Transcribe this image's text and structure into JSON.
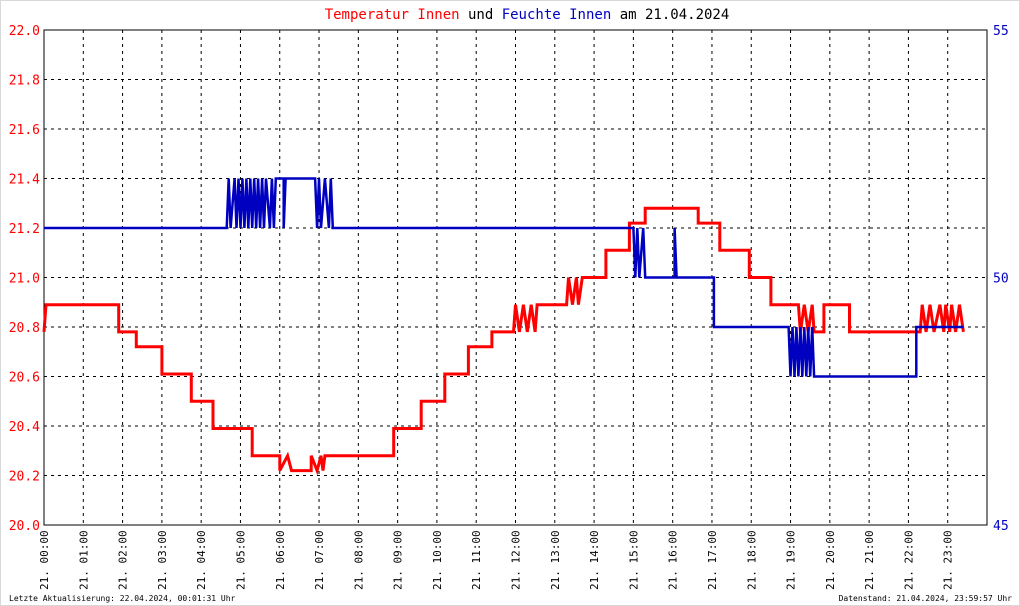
{
  "title": {
    "parts": [
      {
        "text": "Temperatur Innen",
        "color": "#ff0000"
      },
      {
        "text": " und ",
        "color": "#000000"
      },
      {
        "text": "Feuchte Innen",
        "color": "#0000c0"
      },
      {
        "text": " am 21.04.2024",
        "color": "#000000"
      }
    ]
  },
  "footer": {
    "left": "Letzte Aktualisierung: 22.04.2024, 00:01:31 Uhr",
    "right": "Datenstand: 21.04.2024, 23:59:57 Uhr"
  },
  "chart_data": {
    "type": "line",
    "title": "Temperatur Innen und Feuchte Innen am 21.04.2024",
    "grid": true,
    "x_range": [
      "21. 00:00",
      "21. 24:00"
    ],
    "x_unit": "hours",
    "x_ticks": [
      "21. 00:00",
      "21. 01:00",
      "21. 02:00",
      "21. 03:00",
      "21. 04:00",
      "21. 05:00",
      "21. 06:00",
      "21. 07:00",
      "21. 08:00",
      "21. 09:00",
      "21. 10:00",
      "21. 11:00",
      "21. 12:00",
      "21. 13:00",
      "21. 14:00",
      "21. 15:00",
      "21. 16:00",
      "21. 17:00",
      "21. 18:00",
      "21. 19:00",
      "21. 20:00",
      "21. 21:00",
      "21. 22:00",
      "21. 23:00"
    ],
    "y_left": {
      "ticks": [
        "20.0",
        "20.2",
        "20.4",
        "20.6",
        "20.8",
        "21.0",
        "21.2",
        "21.4",
        "21.6",
        "21.8",
        "22.0"
      ],
      "ylim": [
        20.0,
        22.0
      ],
      "color": "#ff0000"
    },
    "y_right": {
      "ticks": [
        "45",
        "50",
        "55"
      ],
      "ylim": [
        45,
        55
      ],
      "color": "#0000c0"
    },
    "series": [
      {
        "name": "Temperatur Innen",
        "axis": "left",
        "color": "#ff0000",
        "points": [
          [
            0.0,
            20.78
          ],
          [
            0.05,
            20.89
          ],
          [
            1.9,
            20.89
          ],
          [
            1.9,
            20.78
          ],
          [
            2.35,
            20.78
          ],
          [
            2.35,
            20.72
          ],
          [
            3.0,
            20.72
          ],
          [
            3.0,
            20.61
          ],
          [
            3.75,
            20.61
          ],
          [
            3.75,
            20.5
          ],
          [
            4.3,
            20.5
          ],
          [
            4.3,
            20.39
          ],
          [
            5.3,
            20.39
          ],
          [
            5.3,
            20.28
          ],
          [
            6.0,
            20.28
          ],
          [
            6.0,
            20.22
          ],
          [
            6.2,
            20.28
          ],
          [
            6.3,
            20.22
          ],
          [
            6.8,
            20.22
          ],
          [
            6.8,
            20.28
          ],
          [
            6.95,
            20.22
          ],
          [
            7.05,
            20.28
          ],
          [
            7.1,
            20.22
          ],
          [
            7.15,
            20.28
          ],
          [
            8.9,
            20.28
          ],
          [
            8.9,
            20.39
          ],
          [
            9.6,
            20.39
          ],
          [
            9.6,
            20.5
          ],
          [
            10.2,
            20.5
          ],
          [
            10.2,
            20.61
          ],
          [
            10.8,
            20.61
          ],
          [
            10.8,
            20.72
          ],
          [
            11.4,
            20.72
          ],
          [
            11.4,
            20.78
          ],
          [
            11.95,
            20.78
          ],
          [
            12.0,
            20.89
          ],
          [
            12.1,
            20.78
          ],
          [
            12.2,
            20.89
          ],
          [
            12.3,
            20.78
          ],
          [
            12.4,
            20.89
          ],
          [
            12.5,
            20.78
          ],
          [
            12.55,
            20.89
          ],
          [
            13.3,
            20.89
          ],
          [
            13.35,
            21.0
          ],
          [
            13.45,
            20.89
          ],
          [
            13.55,
            21.0
          ],
          [
            13.6,
            20.89
          ],
          [
            13.7,
            21.0
          ],
          [
            14.3,
            21.0
          ],
          [
            14.3,
            21.11
          ],
          [
            14.9,
            21.11
          ],
          [
            14.9,
            21.22
          ],
          [
            15.3,
            21.22
          ],
          [
            15.3,
            21.28
          ],
          [
            16.65,
            21.28
          ],
          [
            16.65,
            21.22
          ],
          [
            17.2,
            21.22
          ],
          [
            17.2,
            21.11
          ],
          [
            17.95,
            21.11
          ],
          [
            17.95,
            21.0
          ],
          [
            18.5,
            21.0
          ],
          [
            18.5,
            20.89
          ],
          [
            19.2,
            20.89
          ],
          [
            19.25,
            20.78
          ],
          [
            19.35,
            20.89
          ],
          [
            19.45,
            20.78
          ],
          [
            19.55,
            20.89
          ],
          [
            19.6,
            20.78
          ],
          [
            19.85,
            20.78
          ],
          [
            19.85,
            20.89
          ],
          [
            20.5,
            20.89
          ],
          [
            20.5,
            20.78
          ],
          [
            22.2,
            20.78
          ],
          [
            22.3,
            20.78
          ],
          [
            22.35,
            20.89
          ],
          [
            22.45,
            20.78
          ],
          [
            22.55,
            20.89
          ],
          [
            22.65,
            20.78
          ],
          [
            22.8,
            20.89
          ],
          [
            22.9,
            20.78
          ],
          [
            22.95,
            20.89
          ],
          [
            23.05,
            20.78
          ],
          [
            23.1,
            20.89
          ],
          [
            23.2,
            20.78
          ],
          [
            23.3,
            20.89
          ],
          [
            23.4,
            20.78
          ]
        ]
      },
      {
        "name": "Feuchte Innen",
        "axis": "right",
        "color": "#0000c0",
        "points": [
          [
            0.0,
            51
          ],
          [
            4.65,
            51
          ],
          [
            4.7,
            52
          ],
          [
            4.75,
            51
          ],
          [
            4.85,
            52
          ],
          [
            4.9,
            51
          ],
          [
            4.95,
            52
          ],
          [
            5.0,
            51
          ],
          [
            5.05,
            52
          ],
          [
            5.1,
            51
          ],
          [
            5.15,
            52
          ],
          [
            5.2,
            51
          ],
          [
            5.25,
            52
          ],
          [
            5.3,
            51
          ],
          [
            5.35,
            52
          ],
          [
            5.4,
            51
          ],
          [
            5.45,
            52
          ],
          [
            5.5,
            51
          ],
          [
            5.55,
            52
          ],
          [
            5.6,
            51
          ],
          [
            5.65,
            52
          ],
          [
            5.75,
            51
          ],
          [
            5.8,
            52
          ],
          [
            5.85,
            51
          ],
          [
            5.9,
            52
          ],
          [
            6.1,
            52
          ],
          [
            6.1,
            51
          ],
          [
            6.15,
            52
          ],
          [
            6.9,
            52
          ],
          [
            6.95,
            51
          ],
          [
            7.0,
            52
          ],
          [
            7.05,
            51
          ],
          [
            7.15,
            52
          ],
          [
            7.25,
            51
          ],
          [
            7.3,
            52
          ],
          [
            7.35,
            51
          ],
          [
            15.0,
            51
          ],
          [
            15.05,
            50
          ],
          [
            15.1,
            51
          ],
          [
            15.15,
            50
          ],
          [
            15.25,
            51
          ],
          [
            15.3,
            50
          ],
          [
            16.05,
            50
          ],
          [
            16.05,
            51
          ],
          [
            16.1,
            50
          ],
          [
            16.35,
            50
          ],
          [
            17.05,
            50
          ],
          [
            17.05,
            49
          ],
          [
            18.95,
            49
          ],
          [
            19.0,
            48
          ],
          [
            19.05,
            49
          ],
          [
            19.1,
            48
          ],
          [
            19.15,
            49
          ],
          [
            19.2,
            48
          ],
          [
            19.25,
            49
          ],
          [
            19.3,
            48
          ],
          [
            19.35,
            49
          ],
          [
            19.4,
            48
          ],
          [
            19.45,
            49
          ],
          [
            19.5,
            48
          ],
          [
            19.55,
            49
          ],
          [
            19.6,
            48
          ],
          [
            22.2,
            48
          ],
          [
            22.2,
            49
          ],
          [
            23.4,
            49
          ]
        ]
      }
    ]
  }
}
